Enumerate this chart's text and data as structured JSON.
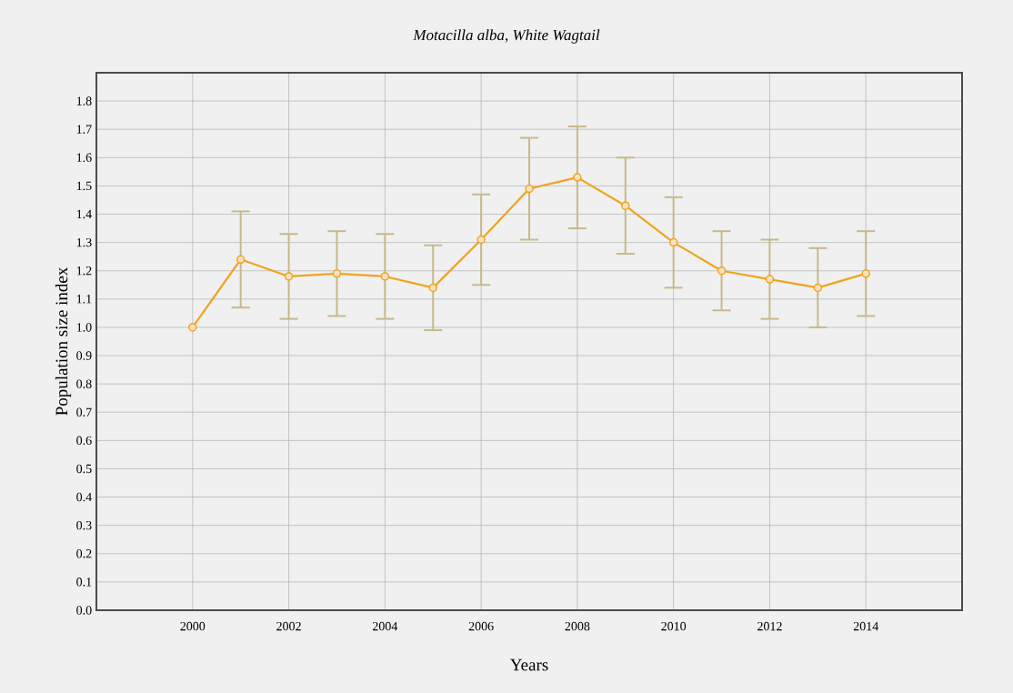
{
  "chart_data": {
    "type": "line",
    "title": "Motacilla alba, White Wagtail",
    "xlabel": "Years",
    "ylabel": "Population size index",
    "x": [
      2000,
      2001,
      2002,
      2003,
      2004,
      2005,
      2006,
      2007,
      2008,
      2009,
      2010,
      2011,
      2012,
      2013,
      2014
    ],
    "series": [
      {
        "color": "#f0a31f",
        "values": [
          1.0,
          1.24,
          1.18,
          1.19,
          1.18,
          1.14,
          1.31,
          1.49,
          1.53,
          1.43,
          1.3,
          1.2,
          1.17,
          1.14,
          1.19
        ],
        "errors": [
          null,
          [
            1.07,
            1.41
          ],
          [
            1.03,
            1.33
          ],
          [
            1.04,
            1.34
          ],
          [
            1.03,
            1.33
          ],
          [
            0.99,
            1.29
          ],
          [
            1.15,
            1.47
          ],
          [
            1.31,
            1.67
          ],
          [
            1.35,
            1.71
          ],
          [
            1.26,
            1.6
          ],
          [
            1.14,
            1.46
          ],
          [
            1.06,
            1.34
          ],
          [
            1.03,
            1.31
          ],
          [
            1.0,
            1.28
          ],
          [
            1.04,
            1.34
          ]
        ]
      }
    ],
    "xlim": [
      1998,
      2016
    ],
    "xticks": [
      2000,
      2002,
      2004,
      2006,
      2008,
      2010,
      2012,
      2014
    ],
    "ylim": [
      0,
      1.9
    ],
    "yticks": [
      {
        "value": 0,
        "label": "0.0"
      },
      0.1,
      0.2,
      0.3,
      0.4,
      0.5,
      0.6,
      0.7,
      0.8,
      0.9,
      {
        "value": 1,
        "label": "1.0"
      },
      1.1,
      1.2,
      1.3,
      1.4,
      1.5,
      1.6,
      1.7,
      1.8
    ],
    "grid": true,
    "marker": "circle",
    "line_style": "solid"
  }
}
